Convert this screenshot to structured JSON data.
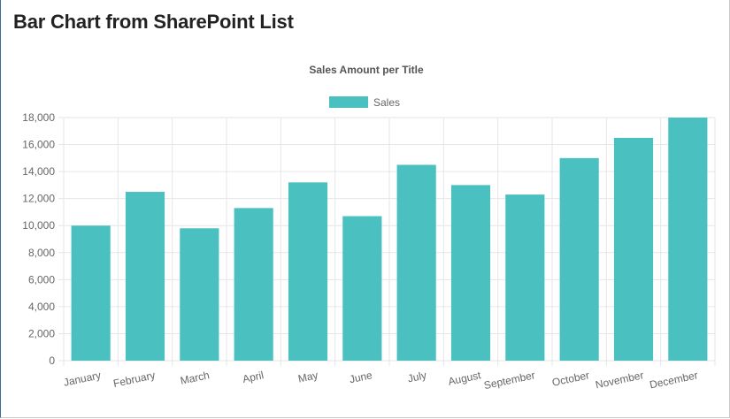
{
  "page": {
    "title": "Bar Chart from SharePoint List"
  },
  "colors": {
    "bar": "#4bc0c0",
    "grid": "#e6e6e6",
    "axis_text": "#666666"
  },
  "chart_data": {
    "type": "bar",
    "title": "Sales Amount per Title",
    "legend": {
      "position": "top",
      "entries": [
        "Sales"
      ]
    },
    "categories": [
      "January",
      "February",
      "March",
      "April",
      "May",
      "June",
      "July",
      "August",
      "September",
      "October",
      "November",
      "December"
    ],
    "series": [
      {
        "name": "Sales",
        "values": [
          10000,
          12500,
          9800,
          11300,
          13200,
          10700,
          14500,
          13000,
          12300,
          15000,
          16500,
          18000
        ]
      }
    ],
    "ylim": [
      0,
      18000
    ],
    "yticks": [
      "0",
      "2,000",
      "4,000",
      "6,000",
      "8,000",
      "10,000",
      "12,000",
      "14,000",
      "16,000",
      "18,000"
    ],
    "grid": true
  }
}
